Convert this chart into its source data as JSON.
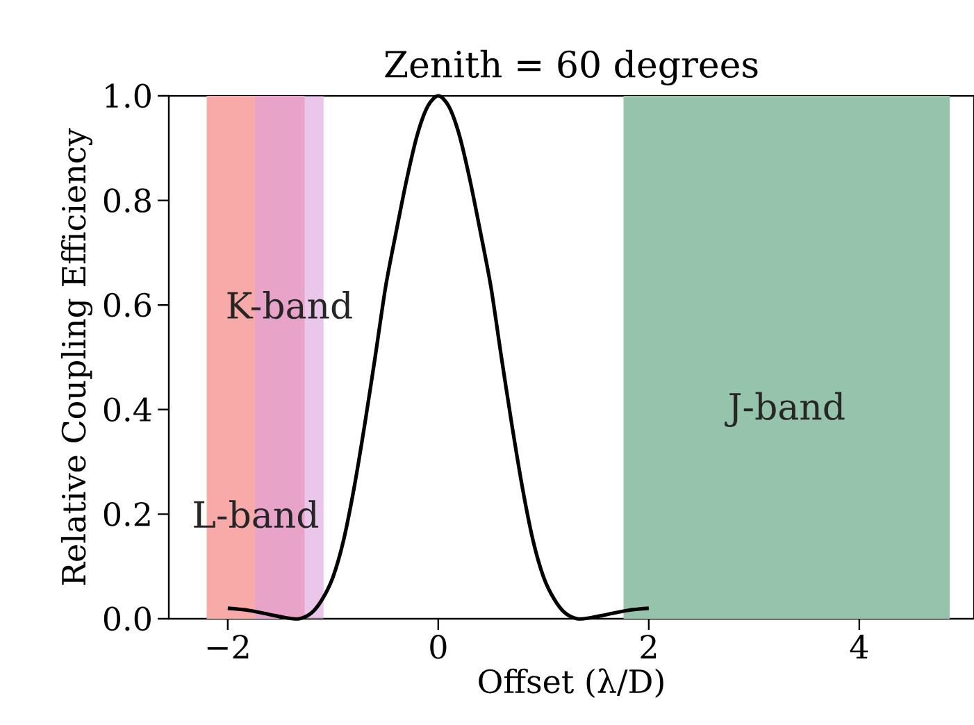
{
  "chart_data": {
    "type": "line",
    "title": "Zenith = 60 degrees",
    "xlabel": "Offset (λ/D)",
    "ylabel": "Relative Coupling Efficiency",
    "x": [
      -2,
      -1.8,
      -1.6,
      -1.45,
      -1.32,
      -1.2,
      -1.1,
      -1.0,
      -0.9,
      -0.8,
      -0.7,
      -0.6,
      -0.5,
      -0.4,
      -0.3,
      -0.2,
      -0.1,
      0,
      0.1,
      0.2,
      0.3,
      0.4,
      0.5,
      0.6,
      0.7,
      0.8,
      0.9,
      1.0,
      1.1,
      1.2,
      1.32,
      1.45,
      1.6,
      1.8,
      2.0
    ],
    "series": [
      {
        "color": "#000000",
        "values": [
          0.02,
          0.016,
          0.008,
          0.002,
          0,
          0.012,
          0.038,
          0.08,
          0.15,
          0.25,
          0.37,
          0.5,
          0.635,
          0.74,
          0.84,
          0.925,
          0.98,
          1.0,
          0.98,
          0.925,
          0.84,
          0.74,
          0.635,
          0.5,
          0.37,
          0.25,
          0.15,
          0.08,
          0.038,
          0.012,
          0,
          0.002,
          0.008,
          0.016,
          0.02
        ]
      }
    ],
    "xlim": [
      -2.56,
      5.09
    ],
    "ylim": [
      0,
      1.0
    ],
    "xticks": [
      {
        "value": -2,
        "label": "−2"
      },
      0,
      2,
      4
    ],
    "yticks": [
      {
        "value": 0,
        "label": "0.0"
      },
      0.2,
      0.4,
      0.6,
      0.8,
      {
        "value": 1.0,
        "label": "1.0"
      }
    ],
    "bands": [
      {
        "axis": "x",
        "from": -2.2,
        "to": -1.27,
        "color": "#f8aaa8",
        "label": "L-band"
      },
      {
        "axis": "x",
        "from": -1.74,
        "to": -1.09,
        "color": "#dda0dd",
        "label": "K-band"
      },
      {
        "axis": "x",
        "from": 1.76,
        "to": 4.86,
        "color": "#96c3ab",
        "label": "J-band"
      }
    ],
    "line_style": "solid"
  }
}
